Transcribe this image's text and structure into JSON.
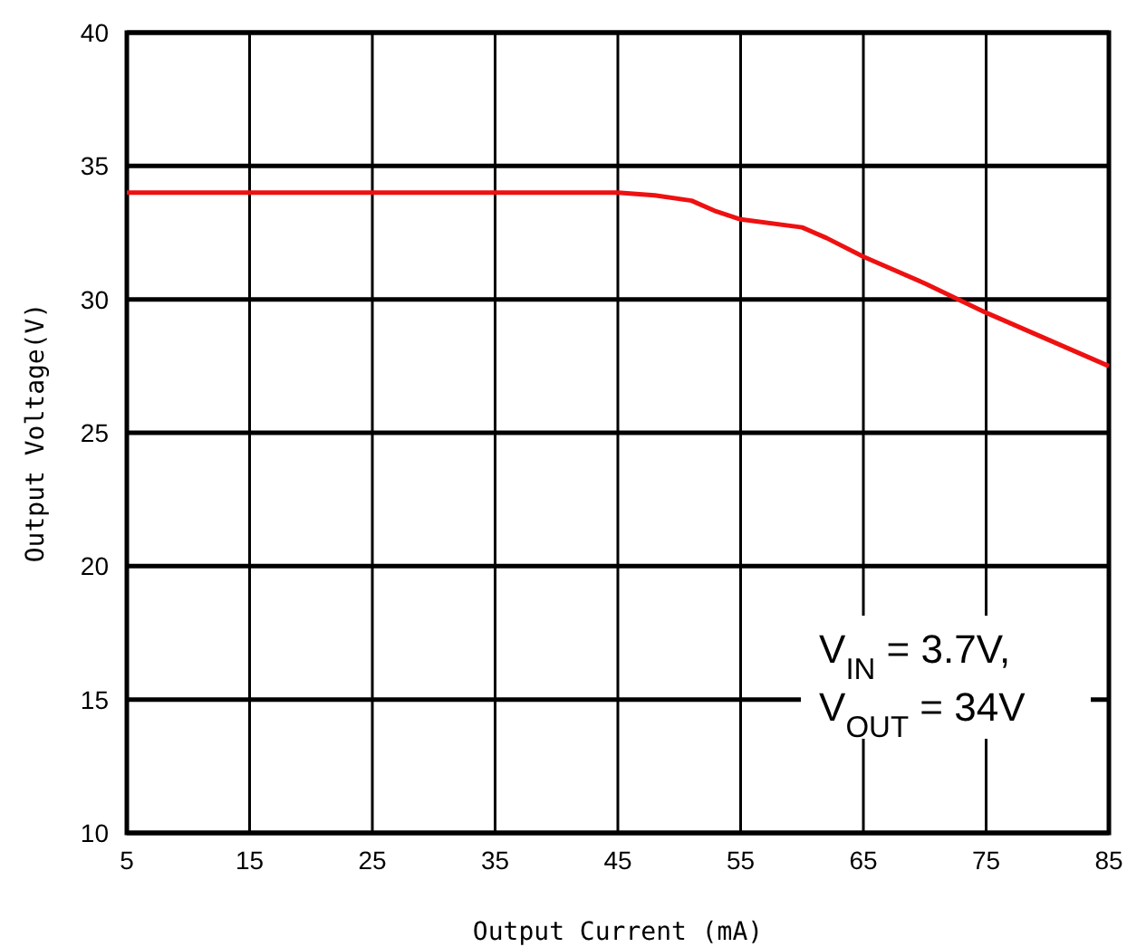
{
  "chart_data": {
    "type": "line",
    "xlabel": "Output Current (mA)",
    "ylabel": "Output Voltage(V)",
    "x": [
      5,
      15,
      25,
      35,
      45,
      48,
      51,
      53,
      55,
      60,
      62,
      65,
      70,
      75,
      80,
      85
    ],
    "series": [
      {
        "color": "#ee1111",
        "values": [
          34,
          34,
          34,
          34,
          34,
          33.9,
          33.7,
          33.3,
          33.0,
          32.7,
          32.3,
          31.6,
          30.6,
          29.5,
          28.5,
          27.5
        ]
      }
    ],
    "xlim": [
      5,
      85
    ],
    "xticks": [
      5,
      15,
      25,
      35,
      45,
      55,
      65,
      75,
      85
    ],
    "ylim": [
      10,
      40
    ],
    "yticks": [
      10,
      15,
      20,
      25,
      30,
      35,
      40
    ],
    "grid": true,
    "marker": "none",
    "line_style": "solid",
    "annotations": [
      "V$_{IN}$ = 3.7V,",
      "V$_{OUT}$ = 34V"
    ]
  }
}
